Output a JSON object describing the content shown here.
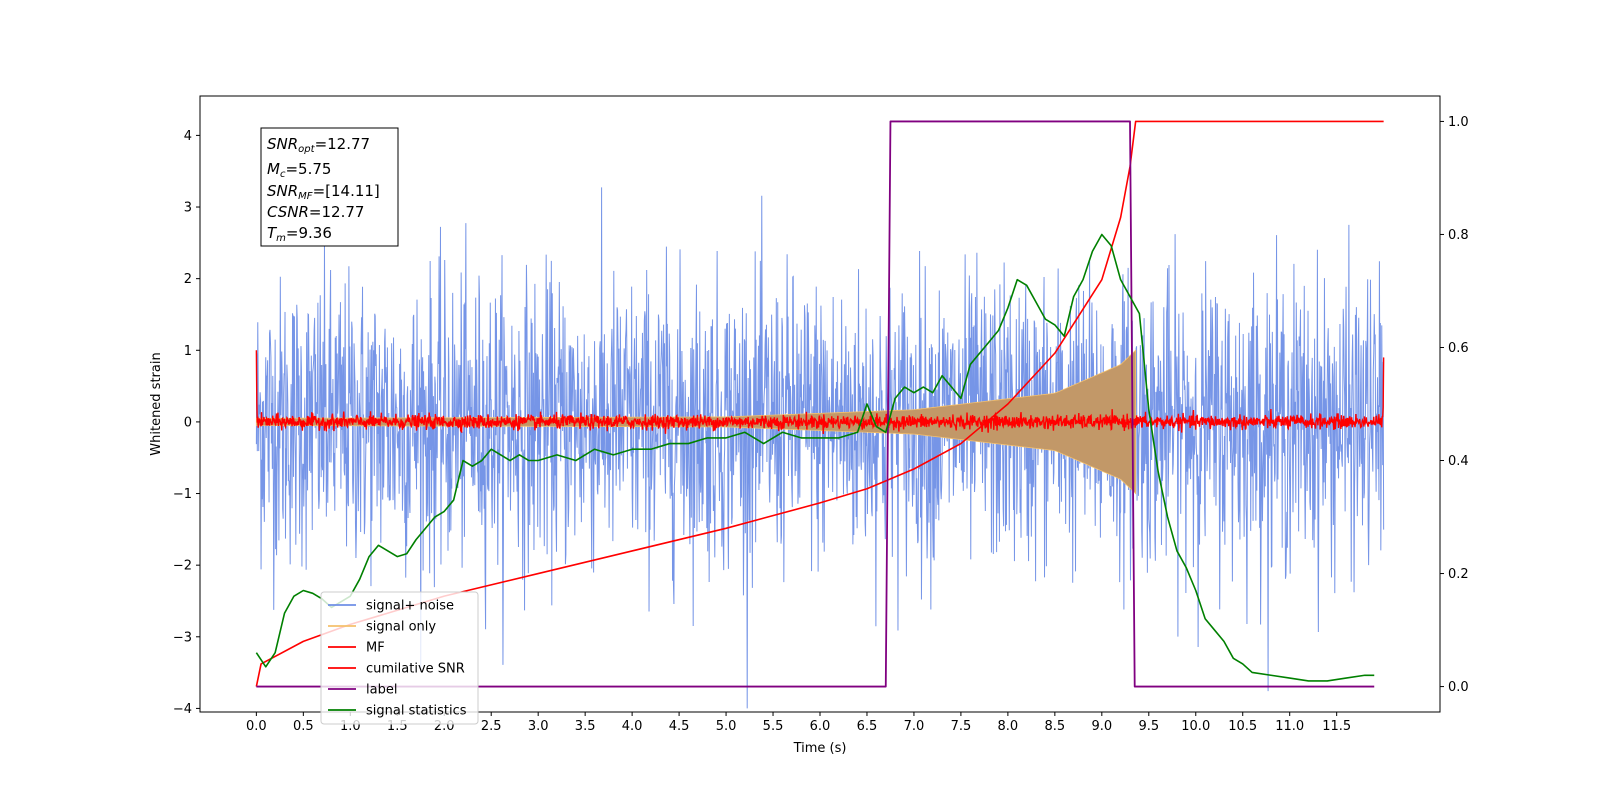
{
  "chart_data": {
    "type": "line",
    "xlabel": "Time (s)",
    "ylabel": "Whitened strain",
    "ylabel_right": "",
    "xlim": [
      -0.6,
      12.6
    ],
    "ylim": [
      -4.05,
      4.55
    ],
    "ylim_right": [
      -0.045,
      1.045
    ],
    "x_ticks": [
      "0.0",
      "0.5",
      "1.0",
      "1.5",
      "2.0",
      "2.5",
      "3.0",
      "3.5",
      "4.0",
      "4.5",
      "5.0",
      "5.5",
      "6.0",
      "6.5",
      "7.0",
      "7.5",
      "8.0",
      "8.5",
      "9.0",
      "9.5",
      "10.0",
      "10.5",
      "11.0",
      "11.5"
    ],
    "y_ticks_left": [
      -4,
      -3,
      -2,
      -1,
      0,
      1,
      2,
      3,
      4
    ],
    "y_ticks_right": [
      0.0,
      0.2,
      0.4,
      0.6,
      0.8,
      1.0
    ],
    "annotation": {
      "snr_opt": "12.77",
      "mc": "5.75",
      "snr_mf": "[14.11]",
      "csnr": "12.77",
      "tm": "9.36"
    },
    "legend": {
      "placement": "lower-left",
      "entries": [
        "signal+ noise",
        "signal only",
        "MF",
        "cumilative SNR",
        "label",
        "signal statistics"
      ]
    },
    "series": [
      {
        "name": "signal+ noise",
        "axis": "left",
        "color": "#6f8fe6",
        "x_range": [
          0,
          12
        ],
        "amplitude": 1.0
      },
      {
        "name": "signal only",
        "axis": "left",
        "color": "#f5c06b",
        "x_range": [
          0,
          9.36
        ],
        "envelope": [
          [
            0,
            0.05
          ],
          [
            5.0,
            0.07
          ],
          [
            7.0,
            0.17
          ],
          [
            8.5,
            0.4
          ],
          [
            9.2,
            0.8
          ],
          [
            9.36,
            1.0
          ]
        ]
      },
      {
        "name": "MF",
        "axis": "left",
        "color": "#ff0000",
        "x_range": [
          0,
          12
        ],
        "amplitude": 0.05
      },
      {
        "name": "cumilative SNR",
        "axis": "right",
        "color": "#ff0000",
        "x": [
          0,
          0.05,
          0.5,
          1.0,
          2.0,
          3.0,
          4.0,
          5.0,
          6.0,
          6.5,
          7.0,
          7.5,
          8.0,
          8.5,
          9.0,
          9.2,
          9.3,
          9.36,
          12.0
        ],
        "y": [
          0.0,
          0.04,
          0.08,
          0.11,
          0.16,
          0.2,
          0.24,
          0.28,
          0.325,
          0.35,
          0.385,
          0.43,
          0.5,
          0.59,
          0.72,
          0.83,
          0.92,
          1.0,
          1.0
        ]
      },
      {
        "name": "label",
        "axis": "right",
        "color": "#800080",
        "x": [
          0,
          6.7,
          6.75,
          9.3,
          9.35,
          11.9
        ],
        "y": [
          0,
          0,
          1,
          1,
          0,
          0
        ]
      },
      {
        "name": "signal statistics",
        "axis": "right",
        "color": "#008000",
        "x": [
          0,
          0.1,
          0.2,
          0.3,
          0.4,
          0.5,
          0.6,
          0.7,
          0.8,
          0.9,
          1.0,
          1.1,
          1.2,
          1.3,
          1.4,
          1.5,
          1.6,
          1.7,
          1.8,
          1.9,
          2.0,
          2.1,
          2.2,
          2.3,
          2.4,
          2.5,
          2.6,
          2.7,
          2.8,
          2.9,
          3.0,
          3.2,
          3.4,
          3.6,
          3.8,
          4.0,
          4.2,
          4.4,
          4.6,
          4.8,
          5.0,
          5.2,
          5.4,
          5.6,
          5.8,
          6.0,
          6.2,
          6.4,
          6.5,
          6.6,
          6.7,
          6.8,
          6.9,
          7.0,
          7.1,
          7.2,
          7.3,
          7.4,
          7.5,
          7.6,
          7.7,
          7.8,
          7.9,
          8.0,
          8.1,
          8.2,
          8.3,
          8.4,
          8.5,
          8.6,
          8.7,
          8.8,
          8.9,
          9.0,
          9.1,
          9.2,
          9.3,
          9.4,
          9.5,
          9.6,
          9.7,
          9.8,
          9.9,
          10.0,
          10.1,
          10.2,
          10.3,
          10.4,
          10.5,
          10.6,
          10.8,
          11.0,
          11.2,
          11.4,
          11.6,
          11.8,
          11.9
        ],
        "y": [
          0.06,
          0.035,
          0.06,
          0.13,
          0.16,
          0.17,
          0.165,
          0.155,
          0.14,
          0.15,
          0.16,
          0.19,
          0.23,
          0.25,
          0.24,
          0.23,
          0.235,
          0.26,
          0.28,
          0.3,
          0.31,
          0.33,
          0.4,
          0.39,
          0.4,
          0.42,
          0.41,
          0.4,
          0.41,
          0.4,
          0.4,
          0.41,
          0.4,
          0.42,
          0.41,
          0.42,
          0.42,
          0.43,
          0.43,
          0.44,
          0.44,
          0.45,
          0.43,
          0.45,
          0.44,
          0.44,
          0.44,
          0.45,
          0.5,
          0.46,
          0.45,
          0.51,
          0.53,
          0.52,
          0.53,
          0.52,
          0.55,
          0.53,
          0.51,
          0.57,
          0.59,
          0.61,
          0.63,
          0.67,
          0.72,
          0.71,
          0.68,
          0.65,
          0.64,
          0.62,
          0.69,
          0.72,
          0.77,
          0.8,
          0.78,
          0.72,
          0.69,
          0.66,
          0.49,
          0.38,
          0.3,
          0.24,
          0.21,
          0.17,
          0.12,
          0.1,
          0.08,
          0.05,
          0.04,
          0.025,
          0.02,
          0.015,
          0.01,
          0.01,
          0.015,
          0.02,
          0.02
        ]
      }
    ]
  }
}
